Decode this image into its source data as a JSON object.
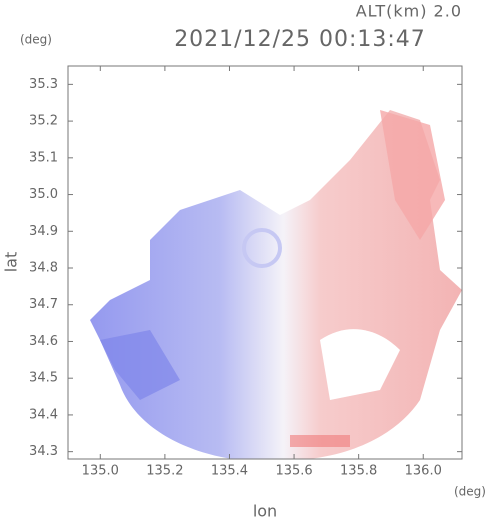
{
  "chart_data": {
    "type": "radar-map",
    "title": "2021/12/25 00:13:47",
    "subtitle": "ALT(km) 2.0",
    "y_unit": "(deg)",
    "x_unit": "(deg)",
    "x_label": "lon",
    "y_label": "lat",
    "xlim": [
      134.9,
      136.12
    ],
    "ylim": [
      34.28,
      35.35
    ],
    "xticks": [
      {
        "value": 135,
        "label": "135.0"
      },
      135.2,
      135.4,
      135.6,
      135.8,
      {
        "value": 136,
        "label": "136.0"
      }
    ],
    "yticks": [
      34.3,
      34.4,
      34.5,
      34.6,
      34.7,
      34.8,
      34.9,
      {
        "value": 35,
        "label": "35.0"
      },
      35.1,
      35.2,
      35.3
    ],
    "grid": false
  }
}
